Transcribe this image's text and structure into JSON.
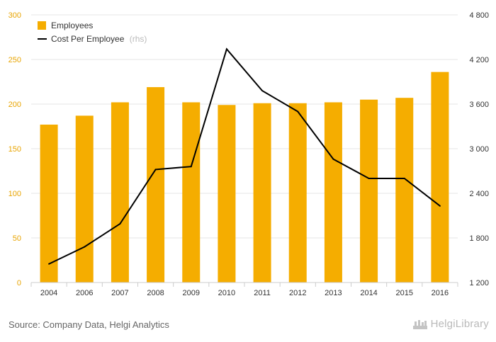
{
  "chart_data": {
    "type": "bar+line",
    "categories": [
      "2004",
      "2006",
      "2007",
      "2008",
      "2009",
      "2010",
      "2011",
      "2012",
      "2013",
      "2014",
      "2015",
      "2016"
    ],
    "series": [
      {
        "name": "Employees",
        "type": "bar",
        "axis": "left",
        "values": [
          177,
          187,
          202,
          219,
          202,
          199,
          201,
          201,
          202,
          205,
          207,
          236
        ]
      },
      {
        "name": "Cost Per Employee",
        "type": "line",
        "axis": "right",
        "values": [
          1450,
          1680,
          1990,
          2720,
          2760,
          4340,
          3780,
          3500,
          2860,
          2600,
          2600,
          2230
        ]
      }
    ],
    "legend": {
      "items": [
        {
          "label": "Employees",
          "suffix": ""
        },
        {
          "label": "Cost Per Employee",
          "suffix": "(rhs)"
        }
      ],
      "placement": "top-left"
    },
    "left_axis": {
      "ylim": [
        0,
        300
      ],
      "ticks": [
        "0",
        "50",
        "100",
        "150",
        "200",
        "250",
        "300"
      ]
    },
    "right_axis": {
      "ylim": [
        1200,
        4800
      ],
      "ticks": [
        "1 200",
        "1 800",
        "2 400",
        "3 000",
        "3 600",
        "4 200",
        "4 800"
      ]
    },
    "grid": true,
    "colors": {
      "bar": "#f5ad00",
      "line": "#000000",
      "grid": "#e6e6e6",
      "left_tick": "#e8a400"
    }
  },
  "footer": {
    "source": "Source: Company Data, Helgi Analytics",
    "logo": "HelgiLibrary",
    "logo_icon": "helgi-library-icon"
  }
}
